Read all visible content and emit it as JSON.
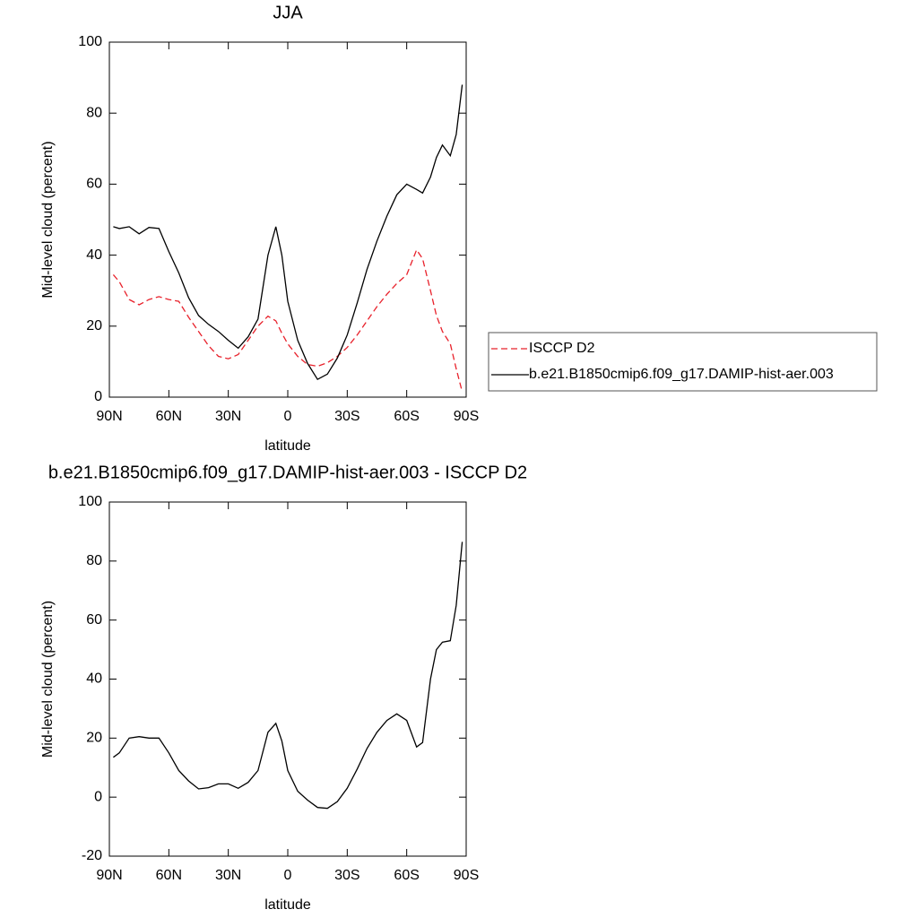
{
  "chart_data": [
    {
      "type": "line",
      "title": "JJA",
      "y_label": "Mid-level cloud (percent)",
      "x_label": "latitude",
      "x": [
        88,
        85,
        80,
        75,
        70,
        65,
        60,
        55,
        50,
        45,
        40,
        35,
        30,
        25,
        20,
        15,
        10,
        6,
        3,
        0,
        -5,
        -10,
        -15,
        -20,
        -25,
        -30,
        -35,
        -40,
        -45,
        -50,
        -55,
        -60,
        -65,
        -68,
        -72,
        -75,
        -78,
        -82,
        -85,
        -88
      ],
      "series": [
        {
          "name": "ISCCP D2",
          "color": "#e8212b",
          "dash": true,
          "values": [
            34.5,
            32.5,
            27.5,
            26,
            27.5,
            28.3,
            27.5,
            27,
            22.5,
            18.5,
            14.5,
            11.5,
            10.8,
            12,
            16,
            20,
            22.8,
            21.5,
            18,
            15,
            11.5,
            9.2,
            8.7,
            9.7,
            11.5,
            14,
            17.5,
            21.5,
            25.5,
            29,
            32,
            34.5,
            41.5,
            39,
            30,
            23,
            18.5,
            15,
            8,
            1.5
          ]
        },
        {
          "name": "b.e21.B1850cmip6.f09_g17.DAMIP-hist-aer.003",
          "color": "#000000",
          "dash": false,
          "values": [
            48,
            47.5,
            48,
            46,
            47.8,
            47.5,
            41,
            35,
            28,
            23,
            20.5,
            18.5,
            16,
            13.8,
            17,
            22,
            40,
            48,
            40,
            27,
            16,
            9.5,
            5,
            6.5,
            11,
            17.5,
            26.5,
            36,
            44,
            51,
            57,
            60,
            58.5,
            57.5,
            62,
            67.5,
            71,
            68,
            74,
            88
          ]
        }
      ],
      "xlim": [
        90,
        -90
      ],
      "xticks": [
        {
          "value": 90,
          "label": "90N"
        },
        {
          "value": 60,
          "label": "60N"
        },
        {
          "value": 30,
          "label": "30N"
        },
        0,
        {
          "value": -30,
          "label": "30S"
        },
        {
          "value": -60,
          "label": "60S"
        },
        {
          "value": -90,
          "label": "90S"
        }
      ],
      "ylim": [
        0,
        100
      ],
      "yticks": [
        0,
        20,
        40,
        60,
        80,
        100
      ],
      "legend": "right"
    },
    {
      "type": "line",
      "title": "b.e21.B1850cmip6.f09_g17.DAMIP-hist-aer.003 - ISCCP D2",
      "y_label": "Mid-level cloud (percent)",
      "x_label": "latitude",
      "x": [
        88,
        85,
        80,
        75,
        70,
        65,
        60,
        55,
        50,
        45,
        40,
        35,
        30,
        25,
        20,
        15,
        10,
        6,
        3,
        0,
        -5,
        -10,
        -15,
        -20,
        -25,
        -30,
        -35,
        -40,
        -45,
        -50,
        -55,
        -60,
        -65,
        -68,
        -72,
        -75,
        -78,
        -82,
        -85,
        -88
      ],
      "series": [
        {
          "color": "#000000",
          "dash": false,
          "values": [
            13.5,
            15,
            20,
            20.5,
            20,
            20,
            15,
            9,
            5.5,
            2.8,
            3.2,
            4.5,
            4.5,
            3,
            5,
            9,
            22,
            25,
            19,
            9,
            2,
            -1,
            -3.5,
            -3.8,
            -1.5,
            3,
            9.5,
            16.5,
            22,
            26,
            28.2,
            26,
            17,
            18.5,
            40,
            50,
            52.5,
            53,
            65,
            86.5
          ]
        }
      ],
      "xlim": [
        90,
        -90
      ],
      "xticks": [
        {
          "value": 90,
          "label": "90N"
        },
        {
          "value": 60,
          "label": "60N"
        },
        {
          "value": 30,
          "label": "30N"
        },
        0,
        {
          "value": -30,
          "label": "30S"
        },
        {
          "value": -60,
          "label": "60S"
        },
        {
          "value": -90,
          "label": "90S"
        }
      ],
      "ylim": [
        -20,
        100
      ],
      "yticks": [
        -20,
        0,
        20,
        40,
        60,
        80,
        100
      ]
    }
  ]
}
